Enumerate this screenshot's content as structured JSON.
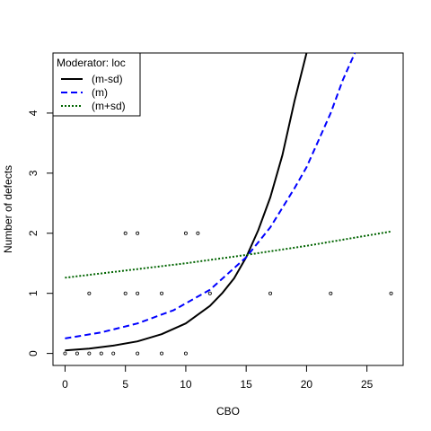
{
  "chart_data": {
    "type": "line",
    "title": "",
    "xlabel": "CBO",
    "ylabel": "Number of defects",
    "xlim": [
      -1,
      28
    ],
    "ylim": [
      -0.2,
      5.0
    ],
    "x_ticks": [
      0,
      5,
      10,
      15,
      20,
      25
    ],
    "y_ticks": [
      0,
      1,
      2,
      3,
      4
    ],
    "grid": false,
    "legend": {
      "title": "Moderator: loc",
      "placement": "top-left",
      "entries": [
        {
          "label": "(m-sd)",
          "color": "#000000",
          "dash": "solid"
        },
        {
          "label": "(m)",
          "color": "#0000ff",
          "dash": "dashed"
        },
        {
          "label": "(m+sd)",
          "color": "#006400",
          "dash": "dotted"
        }
      ]
    },
    "series": [
      {
        "name": "(m-sd)",
        "color": "#000000",
        "dash": "solid",
        "x": [
          0,
          2,
          4,
          6,
          8,
          10,
          12,
          13,
          14,
          15,
          16,
          17,
          18,
          19,
          20
        ],
        "y": [
          0.05,
          0.08,
          0.13,
          0.2,
          0.32,
          0.5,
          0.79,
          1.0,
          1.25,
          1.6,
          2.05,
          2.6,
          3.3,
          4.2,
          5.0
        ]
      },
      {
        "name": "(m)",
        "color": "#0000ff",
        "dash": "dashed",
        "x": [
          0,
          3,
          6,
          9,
          12,
          15,
          17,
          19,
          20,
          21,
          22,
          23,
          24
        ],
        "y": [
          0.25,
          0.35,
          0.5,
          0.72,
          1.06,
          1.6,
          2.1,
          2.75,
          3.1,
          3.55,
          4.0,
          4.55,
          5.0
        ]
      },
      {
        "name": "(m+sd)",
        "color": "#006400",
        "dash": "dotted",
        "x": [
          0,
          5,
          10,
          15,
          20,
          27
        ],
        "y": [
          1.26,
          1.38,
          1.5,
          1.64,
          1.79,
          2.03
        ]
      }
    ],
    "points": [
      {
        "x": 0,
        "y": 0
      },
      {
        "x": 1,
        "y": 0
      },
      {
        "x": 2,
        "y": 0
      },
      {
        "x": 3,
        "y": 0
      },
      {
        "x": 4,
        "y": 0
      },
      {
        "x": 6,
        "y": 0
      },
      {
        "x": 8,
        "y": 0
      },
      {
        "x": 10,
        "y": 0
      },
      {
        "x": 2,
        "y": 1
      },
      {
        "x": 5,
        "y": 1
      },
      {
        "x": 6,
        "y": 1
      },
      {
        "x": 8,
        "y": 1
      },
      {
        "x": 12,
        "y": 1
      },
      {
        "x": 17,
        "y": 1
      },
      {
        "x": 22,
        "y": 1
      },
      {
        "x": 27,
        "y": 1
      },
      {
        "x": 5,
        "y": 2
      },
      {
        "x": 6,
        "y": 2
      },
      {
        "x": 10,
        "y": 2
      },
      {
        "x": 11,
        "y": 2
      }
    ]
  }
}
